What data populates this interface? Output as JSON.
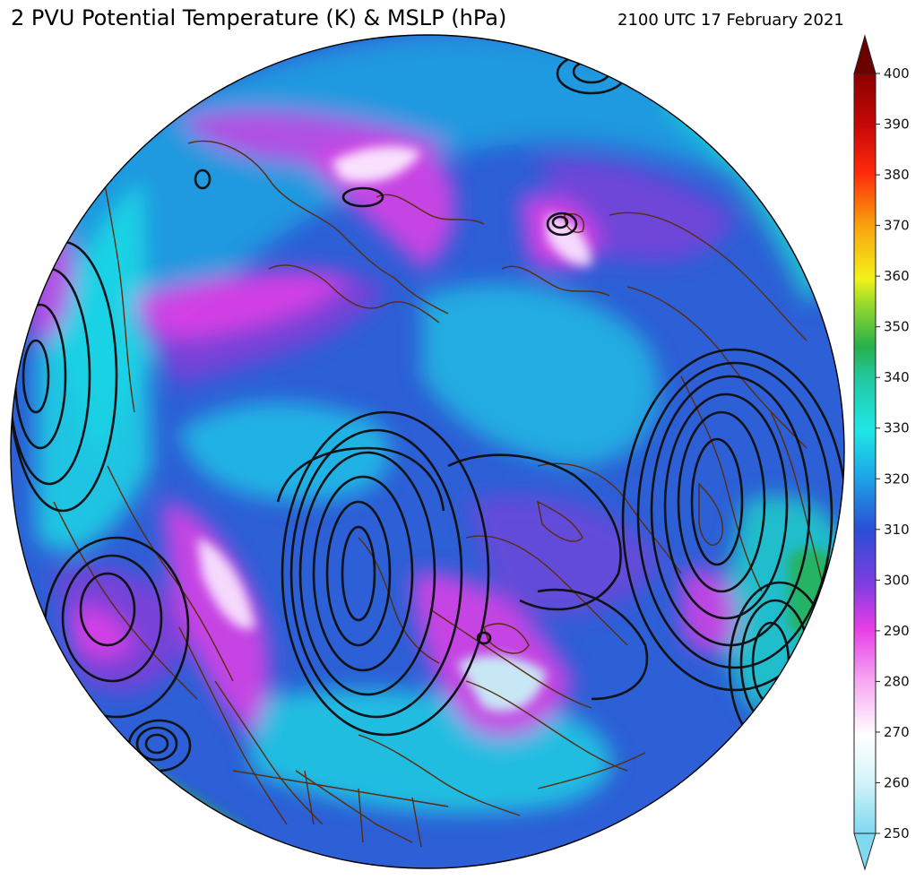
{
  "header": {
    "title": "2 PVU Potential Temperature (K) & MSLP (hPa)",
    "timestamp": "2100 UTC 17 February 2021"
  },
  "colorbar": {
    "ticks": [
      400,
      390,
      380,
      370,
      360,
      350,
      340,
      330,
      320,
      310,
      300,
      290,
      280,
      270,
      260,
      250
    ],
    "min": 250,
    "max": 400,
    "extend": "both"
  },
  "colors": {
    "background_blue": "#2d5fd6",
    "magenta": "#e23ee6",
    "cyan": "#19e6e6",
    "purple": "#8a3bd8",
    "white": "#fbeaff",
    "green": "#26b04a",
    "coastline": "#5a2c0e",
    "isobar": "#0f1216"
  }
}
